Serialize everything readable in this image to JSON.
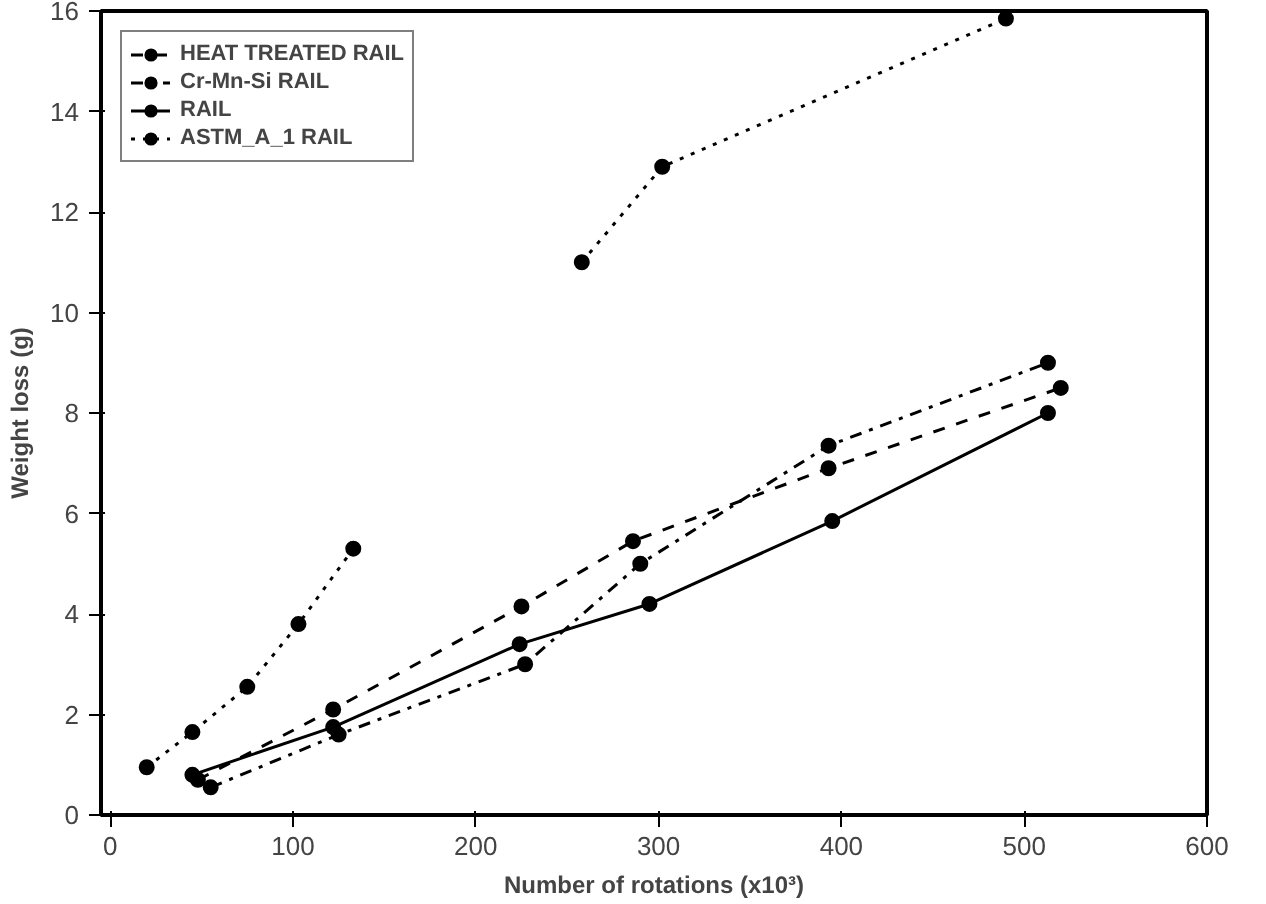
{
  "chart_data": {
    "type": "line",
    "xlabel": "Number of rotations (x10³)",
    "ylabel": "Weight loss (g)",
    "xlim": [
      -5,
      600
    ],
    "ylim": [
      0,
      16
    ],
    "xticks": [
      0,
      100,
      200,
      300,
      400,
      500,
      600
    ],
    "yticks": [
      0,
      2,
      4,
      6,
      8,
      10,
      12,
      14,
      16
    ],
    "grid": false,
    "legend": "top left",
    "marker": "circle",
    "series": [
      {
        "name": "HEAT TREATED RAIL",
        "color": "#000000",
        "line_style": "dashed",
        "x": [
          48,
          122,
          225,
          286,
          393,
          520
        ],
        "values": [
          0.7,
          2.1,
          4.15,
          5.45,
          6.9,
          8.5
        ]
      },
      {
        "name": "Cr-Mn-Si RAIL",
        "color": "#000000",
        "line_style": "dashdot",
        "x": [
          55,
          125,
          227,
          290,
          393,
          513
        ],
        "values": [
          0.55,
          1.6,
          3.0,
          5.0,
          7.35,
          9.0
        ]
      },
      {
        "name": "RAIL",
        "color": "#000000",
        "line_style": "solid",
        "x": [
          45,
          122,
          224,
          295,
          395,
          513
        ],
        "values": [
          0.8,
          1.75,
          3.4,
          4.2,
          5.85,
          8.0
        ]
      },
      {
        "name": "ASTM_A_1 RAIL",
        "color": "#000000",
        "line_style": "dotted",
        "x": [
          20,
          45,
          75,
          103,
          133,
          null,
          258,
          302,
          490
        ],
        "values": [
          0.95,
          1.65,
          2.55,
          3.8,
          5.3,
          null,
          11.0,
          12.9,
          15.85
        ]
      }
    ]
  }
}
